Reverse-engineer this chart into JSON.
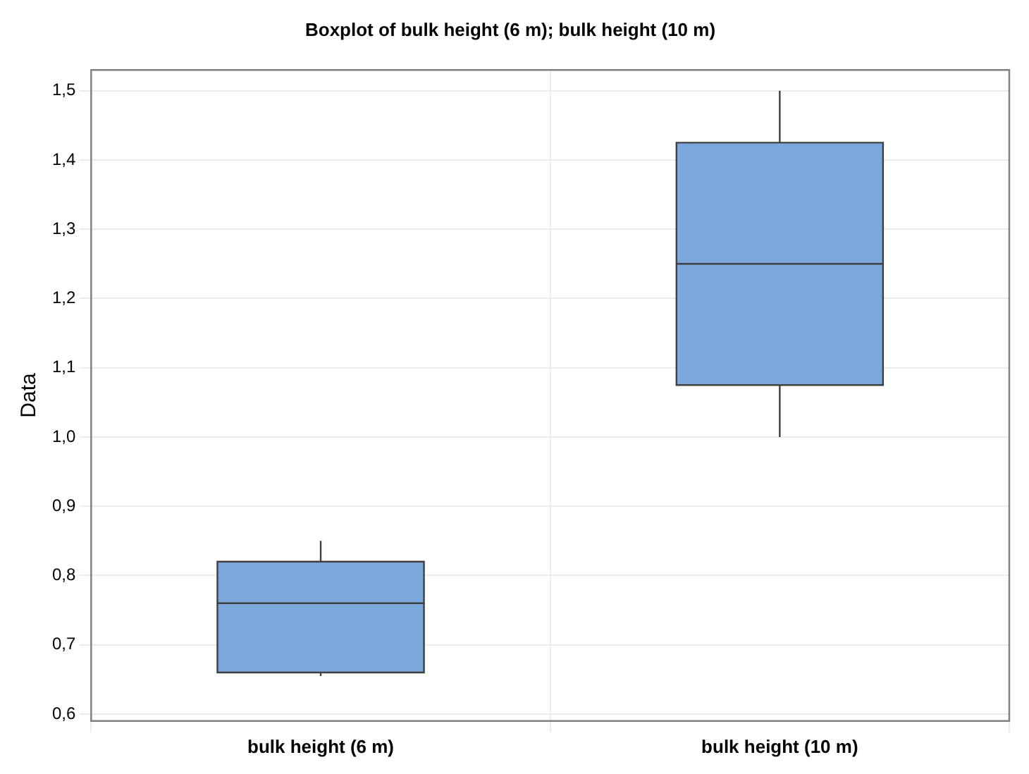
{
  "chart_data": {
    "type": "box",
    "title": "Boxplot of bulk height (6 m); bulk height (10 m)",
    "ylabel": "Data",
    "categories": [
      "bulk height (6 m)",
      "bulk height (10 m)"
    ],
    "boxes": [
      {
        "low": 0.655,
        "q1": 0.66,
        "median": 0.76,
        "q3": 0.82,
        "high": 0.85
      },
      {
        "low": 1.0,
        "q1": 1.075,
        "median": 1.25,
        "q3": 1.425,
        "high": 1.5
      }
    ],
    "color": "#7ba7dc",
    "ylim": [
      0.59,
      1.53
    ],
    "yticks": [
      {
        "value": 0.6,
        "label": "0,6"
      },
      {
        "value": 0.7,
        "label": "0,7"
      },
      {
        "value": 0.8,
        "label": "0,8"
      },
      {
        "value": 0.9,
        "label": "0,9"
      },
      {
        "value": 1.0,
        "label": "1,0"
      },
      {
        "value": 1.1,
        "label": "1,1"
      },
      {
        "value": 1.2,
        "label": "1,2"
      },
      {
        "value": 1.3,
        "label": "1,3"
      },
      {
        "value": 1.4,
        "label": "1,4"
      },
      {
        "value": 1.5,
        "label": "1,5"
      }
    ],
    "grid": true
  }
}
